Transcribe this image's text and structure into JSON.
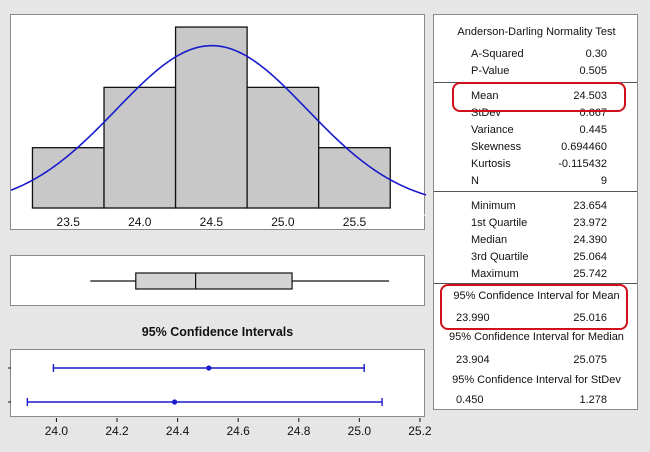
{
  "histogram": {
    "x_ticks": [
      "23.5",
      "24.0",
      "24.5",
      "25.0",
      "25.5"
    ]
  },
  "ci_plot": {
    "title": "95% Confidence Intervals",
    "x_ticks": [
      "24.0",
      "24.2",
      "24.4",
      "24.6",
      "24.8",
      "25.0",
      "25.2"
    ]
  },
  "stats": {
    "test_title": "Anderson-Darling Normality Test",
    "normality": [
      {
        "label": "A-Squared",
        "value": "0.30"
      },
      {
        "label": "P-Value",
        "value": "0.505"
      }
    ],
    "moments": [
      {
        "label": "Mean",
        "value": "24.503"
      },
      {
        "label": "StDev",
        "value": "0.667"
      },
      {
        "label": "Variance",
        "value": "0.445"
      },
      {
        "label": "Skewness",
        "value": "0.694460"
      },
      {
        "label": "Kurtosis",
        "value": "-0.115432"
      },
      {
        "label": "N",
        "value": "9"
      }
    ],
    "quantiles": [
      {
        "label": "Minimum",
        "value": "23.654"
      },
      {
        "label": "1st Quartile",
        "value": "23.972"
      },
      {
        "label": "Median",
        "value": "24.390"
      },
      {
        "label": "3rd Quartile",
        "value": "25.064"
      },
      {
        "label": "Maximum",
        "value": "25.742"
      }
    ],
    "ci_mean": {
      "title": "95% Confidence Interval for Mean",
      "low": "23.990",
      "high": "25.016"
    },
    "ci_median": {
      "title": "95% Confidence Interval for Median",
      "low": "23.904",
      "high": "25.075"
    },
    "ci_stdev": {
      "title": "95% Confidence Interval for StDev",
      "low": "0.450",
      "high": "1.278"
    }
  },
  "chart_data": [
    {
      "type": "bar",
      "bins": [
        {
          "from": 23.25,
          "to": 23.75,
          "count": 1
        },
        {
          "from": 23.75,
          "to": 24.25,
          "count": 2
        },
        {
          "from": 24.25,
          "to": 24.75,
          "count": 3
        },
        {
          "from": 24.75,
          "to": 25.25,
          "count": 2
        },
        {
          "from": 25.25,
          "to": 25.75,
          "count": 1
        }
      ],
      "normal_fit": {
        "mean": 24.503,
        "stdev": 0.667
      },
      "xlim": [
        23.1,
        26.0
      ],
      "ylim": [
        0,
        3.15
      ],
      "colors": {
        "bars": "#c8c8c8",
        "curve": "#1a1acc"
      }
    },
    {
      "type": "boxplot",
      "min": 23.654,
      "q1": 23.972,
      "median": 24.39,
      "q3": 25.064,
      "max": 25.742,
      "xlim": [
        23.1,
        26.0
      ]
    },
    {
      "type": "interval",
      "intervals": [
        {
          "estimate": 24.503,
          "low": 23.99,
          "high": 25.016
        },
        {
          "estimate": 24.39,
          "low": 23.904,
          "high": 25.075
        }
      ],
      "xlim": [
        23.85,
        25.22
      ],
      "colors": {
        "interval": "#1a1acc"
      }
    }
  ]
}
